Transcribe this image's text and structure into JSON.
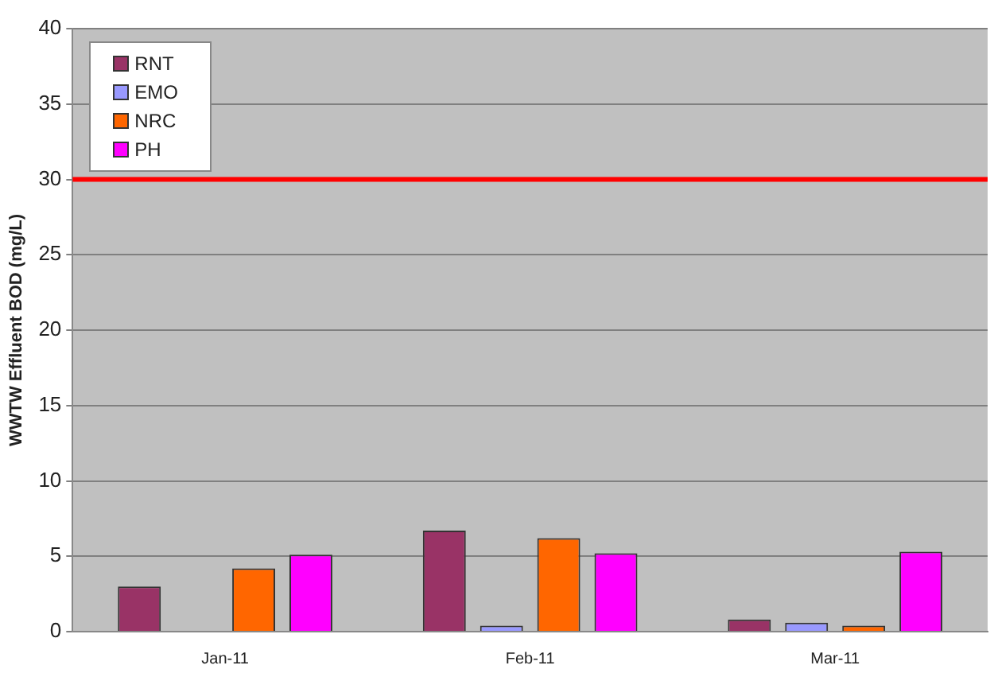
{
  "chart_data": {
    "type": "bar",
    "ylabel": "WWTW Effluent BOD (mg/L)",
    "categories": [
      "Jan-11",
      "Feb-11",
      "Mar-11"
    ],
    "series": [
      {
        "name": "RNT",
        "color": "#993366",
        "values": [
          3.0,
          6.7,
          0.8
        ]
      },
      {
        "name": "EMO",
        "color": "#9999ff",
        "values": [
          null,
          0.4,
          0.6
        ]
      },
      {
        "name": "NRC",
        "color": "#ff6600",
        "values": [
          4.2,
          6.2,
          0.4
        ]
      },
      {
        "name": "PH",
        "color": "#ff00ff",
        "values": [
          5.1,
          5.2,
          5.3
        ]
      }
    ],
    "ylim": [
      0,
      40
    ],
    "yticks": [
      0,
      5,
      10,
      15,
      20,
      25,
      30,
      35,
      40
    ],
    "grid": "y",
    "legend": "top left",
    "ref_lines": [
      {
        "axis": "y",
        "value": 30,
        "color": "#ff0000"
      }
    ]
  }
}
